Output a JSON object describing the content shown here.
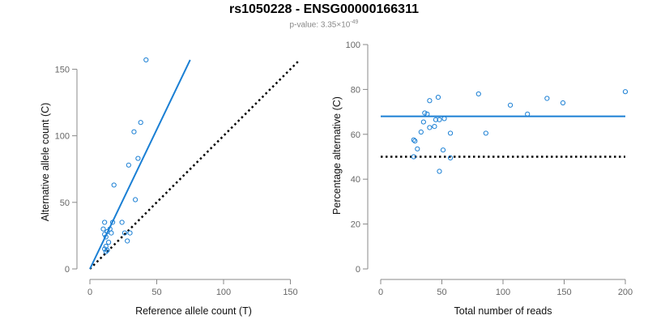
{
  "header": {
    "title": "rs1050228 - ENSG00000166311",
    "pvalue_label": "p-value: 3.35×10",
    "pvalue_exponent": "-49"
  },
  "colors": {
    "series": "#1a7fd4",
    "reference": "#000000",
    "axis": "#888888"
  },
  "chart_data": [
    {
      "type": "scatter",
      "xlabel": "Reference allele count (T)",
      "ylabel": "Alternative allele count (C)",
      "xlim": [
        0,
        160
      ],
      "ylim": [
        0,
        160
      ],
      "xticks": [
        0,
        50,
        100,
        150
      ],
      "yticks": [
        0,
        50,
        100,
        150
      ],
      "points": [
        [
          42,
          157
        ],
        [
          38,
          110
        ],
        [
          33,
          103
        ],
        [
          36,
          83
        ],
        [
          29,
          78
        ],
        [
          18,
          63
        ],
        [
          34,
          52
        ],
        [
          11,
          35
        ],
        [
          17,
          35
        ],
        [
          24,
          35
        ],
        [
          10,
          30
        ],
        [
          15,
          30
        ],
        [
          13,
          28
        ],
        [
          26,
          27
        ],
        [
          11,
          26
        ],
        [
          16,
          27
        ],
        [
          12,
          24
        ],
        [
          30,
          27
        ],
        [
          14,
          20
        ],
        [
          28,
          21
        ],
        [
          12,
          17
        ],
        [
          11,
          15
        ],
        [
          13,
          14
        ],
        [
          12,
          13
        ]
      ],
      "fit_line": {
        "from": [
          0,
          0
        ],
        "to": [
          75,
          157
        ],
        "style": "solid"
      },
      "reference_line": {
        "from": [
          0,
          0
        ],
        "to": [
          157,
          157
        ],
        "style": "dotted"
      }
    },
    {
      "type": "scatter",
      "xlabel": "Total number of reads",
      "ylabel": "Percentage alternative (C)",
      "xlim": [
        0,
        200
      ],
      "ylim": [
        0,
        100
      ],
      "xticks": [
        0,
        50,
        100,
        150,
        200
      ],
      "yticks": [
        0,
        20,
        40,
        60,
        80,
        100
      ],
      "points": [
        [
          200,
          79
        ],
        [
          80,
          78
        ],
        [
          47,
          76.5
        ],
        [
          136,
          76
        ],
        [
          40,
          75
        ],
        [
          149,
          74
        ],
        [
          106,
          73
        ],
        [
          36,
          69.5
        ],
        [
          38,
          69
        ],
        [
          120,
          69
        ],
        [
          52,
          67
        ],
        [
          45,
          66.5
        ],
        [
          48,
          66.5
        ],
        [
          35,
          65.5
        ],
        [
          40,
          63
        ],
        [
          44,
          63.5
        ],
        [
          33,
          61
        ],
        [
          57,
          60.5
        ],
        [
          86,
          60.5
        ],
        [
          27,
          57.5
        ],
        [
          28,
          57
        ],
        [
          30,
          53.5
        ],
        [
          51,
          53
        ],
        [
          57,
          49.5
        ],
        [
          27,
          50
        ],
        [
          48,
          43.5
        ]
      ],
      "fit_line": {
        "y": 68,
        "x_from": 0,
        "x_to": 200,
        "style": "solid"
      },
      "reference_line": {
        "y": 50,
        "x_from": 0,
        "x_to": 200,
        "style": "dotted"
      }
    }
  ]
}
